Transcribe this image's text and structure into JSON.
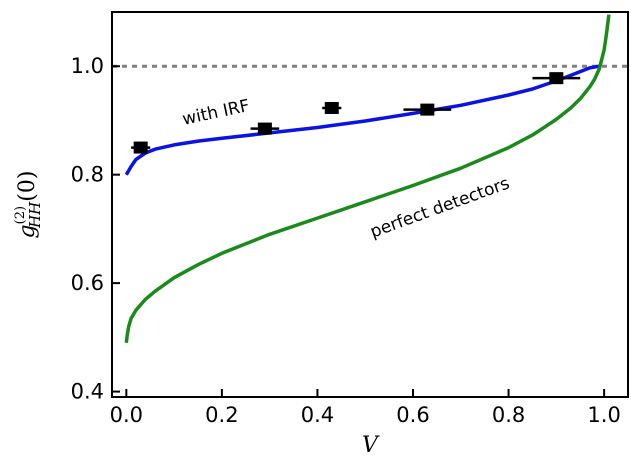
{
  "chart_data": {
    "type": "line",
    "xlabel": "V",
    "ylabel": {
      "base": "g",
      "superscript": "(2)",
      "subscript": "HH",
      "argument": "(0)"
    },
    "xlim": [
      -0.03,
      1.05
    ],
    "ylim": [
      0.39,
      1.1
    ],
    "xticks": [
      0.0,
      0.2,
      0.4,
      0.6,
      0.8,
      1.0
    ],
    "xtick_labels": [
      "0.0",
      "0.2",
      "0.4",
      "0.6",
      "0.8",
      "1.0"
    ],
    "yticks": [
      0.4,
      0.6,
      0.8,
      1.0
    ],
    "ytick_labels": [
      "0.4",
      "0.6",
      "0.8",
      "1.0"
    ],
    "grid": false,
    "reference_line": {
      "y": 1.0,
      "style": "dashed",
      "color": "#808080"
    },
    "series": [
      {
        "label": "with IRF",
        "color": "#0a12e6",
        "x": [
          0.0,
          0.01,
          0.02,
          0.04,
          0.06,
          0.1,
          0.15,
          0.2,
          0.3,
          0.4,
          0.5,
          0.6,
          0.7,
          0.8,
          0.85,
          0.9,
          0.93,
          0.95,
          0.97,
          0.99
        ],
        "y": [
          0.8,
          0.815,
          0.828,
          0.84,
          0.847,
          0.855,
          0.862,
          0.867,
          0.877,
          0.887,
          0.899,
          0.913,
          0.928,
          0.947,
          0.958,
          0.973,
          0.983,
          0.99,
          0.997,
          1.0
        ]
      },
      {
        "label": "perfect detectors",
        "color": "#1a8a1a",
        "x": [
          0.0,
          0.002,
          0.005,
          0.01,
          0.02,
          0.04,
          0.06,
          0.1,
          0.15,
          0.2,
          0.3,
          0.4,
          0.5,
          0.6,
          0.7,
          0.8,
          0.85,
          0.9,
          0.93,
          0.95,
          0.97,
          0.98,
          0.99,
          1.0,
          1.005,
          1.01
        ],
        "y": [
          0.49,
          0.505,
          0.52,
          0.535,
          0.55,
          0.57,
          0.585,
          0.61,
          0.634,
          0.655,
          0.69,
          0.72,
          0.75,
          0.78,
          0.812,
          0.85,
          0.873,
          0.902,
          0.923,
          0.94,
          0.962,
          0.976,
          0.995,
          1.03,
          1.06,
          1.095
        ]
      }
    ],
    "points": [
      {
        "x": 0.03,
        "y": 0.85,
        "xerr": 0.02
      },
      {
        "x": 0.29,
        "y": 0.885,
        "xerr": 0.03
      },
      {
        "x": 0.43,
        "y": 0.923,
        "xerr": 0.02
      },
      {
        "x": 0.63,
        "y": 0.92,
        "xerr": 0.05
      },
      {
        "x": 0.9,
        "y": 0.978,
        "xerr": 0.05
      }
    ],
    "annotations": [
      {
        "text": "with IRF",
        "x": 0.19,
        "y": 0.905,
        "rotation": -12
      },
      {
        "text": "perfect detectors",
        "x": 0.66,
        "y": 0.73,
        "rotation": -20
      }
    ]
  }
}
